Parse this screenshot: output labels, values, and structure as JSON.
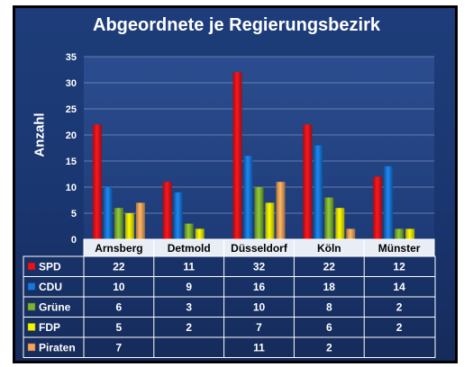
{
  "chart_data": {
    "type": "bar",
    "title": "Abgeordnete je Regierungsbezirk",
    "ylabel": "Anzahl",
    "xlabel": "",
    "ylim": [
      0,
      35
    ],
    "yticks": [
      0,
      5,
      10,
      15,
      20,
      25,
      30,
      35
    ],
    "grid": true,
    "categories": [
      "Arnsberg",
      "Detmold",
      "Düsseldorf",
      "Köln",
      "Münster"
    ],
    "series": [
      {
        "name": "SPD",
        "color": "#e8141b",
        "values": [
          22,
          11,
          32,
          22,
          12
        ]
      },
      {
        "name": "CDU",
        "color": "#1877d8",
        "values": [
          10,
          9,
          16,
          18,
          14
        ]
      },
      {
        "name": "Grüne",
        "color": "#7fb32f",
        "values": [
          6,
          3,
          10,
          8,
          2
        ]
      },
      {
        "name": "FDP",
        "color": "#f4f400",
        "values": [
          5,
          2,
          7,
          6,
          2
        ]
      },
      {
        "name": "Piraten",
        "color": "#f5a25a",
        "values": [
          7,
          null,
          11,
          2,
          null
        ]
      }
    ]
  }
}
